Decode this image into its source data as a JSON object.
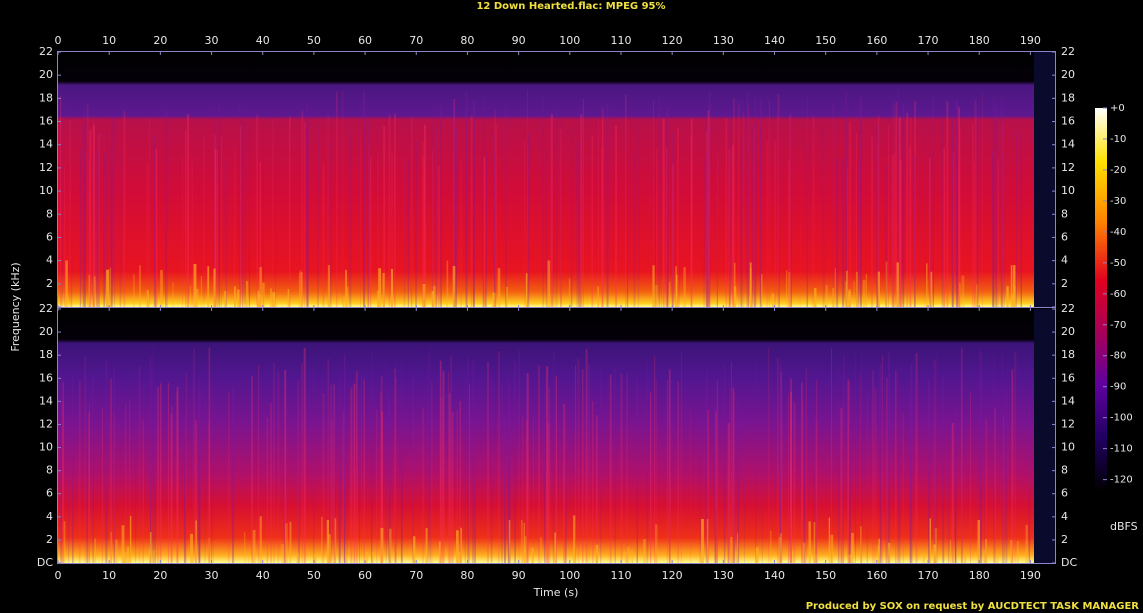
{
  "chart_data": {
    "type": "spectrogram",
    "title": "12 Down Hearted.flac: MPEG 95%",
    "xlabel": "Time (s)",
    "ylabel": "Frequency (kHz)",
    "xlim": [
      0,
      195
    ],
    "xticks": [
      0,
      10,
      20,
      30,
      40,
      50,
      60,
      70,
      80,
      90,
      100,
      110,
      120,
      130,
      140,
      150,
      160,
      170,
      180,
      190
    ],
    "ylim": [
      0,
      22
    ],
    "yticks": [
      {
        "value": 0,
        "label": "DC"
      },
      2,
      4,
      6,
      8,
      10,
      12,
      14,
      16,
      18,
      20,
      22
    ],
    "colorbar": {
      "label": "dBFS",
      "lim": [
        -124,
        0
      ],
      "ticks": [
        {
          "value": 0,
          "label": "+0"
        },
        -10,
        -20,
        -30,
        -40,
        -50,
        -60,
        -70,
        -80,
        -90,
        -100,
        -110,
        -120
      ]
    },
    "footer": "Produced by SOX on request by AUCDTECT TASK MANAGER"
  }
}
